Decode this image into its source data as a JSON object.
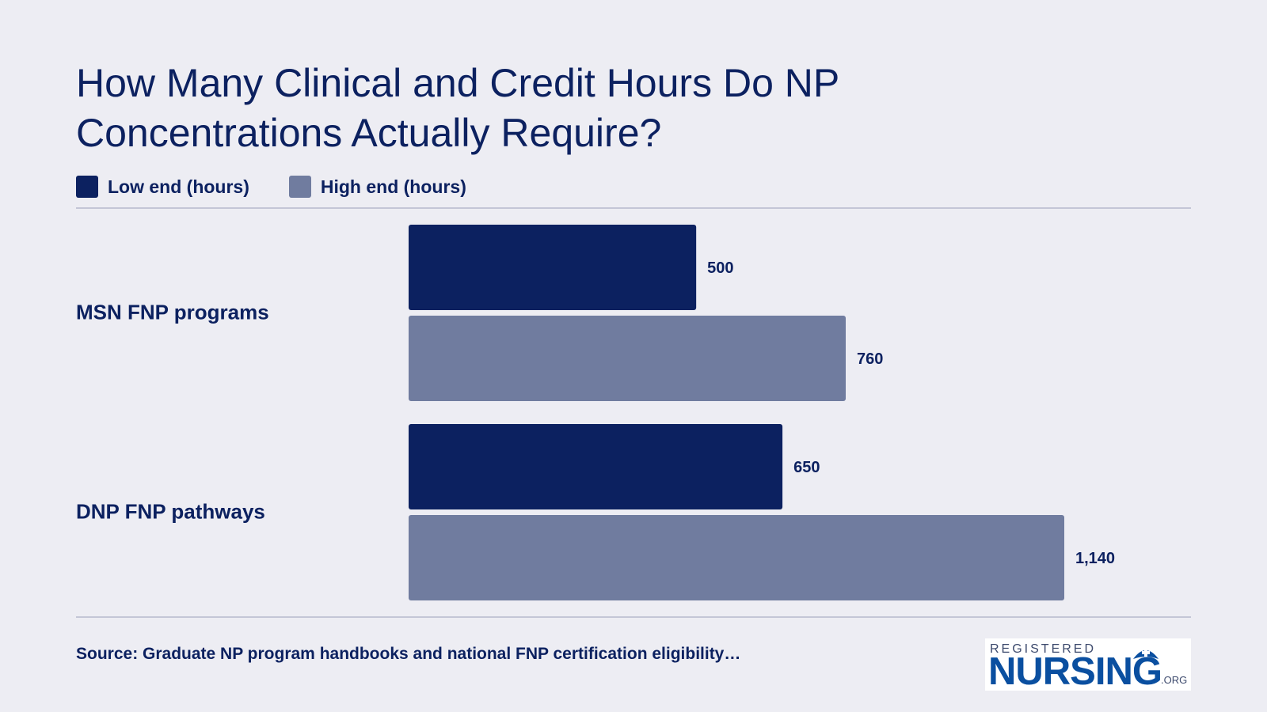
{
  "title": "How Many Clinical and Credit Hours Do NP Concentrations Actually Require?",
  "legend": [
    {
      "label": "Low end (hours)",
      "color": "#0c2160"
    },
    {
      "label": "High end (hours)",
      "color": "#707c9f"
    }
  ],
  "source": "Source: Graduate NP program handbooks and national FNP certification eligibility…",
  "logo": {
    "top": "REGISTERED",
    "main": "NURSING",
    "suffix": ".ORG",
    "icon": "nurse-cap-icon"
  },
  "chart_data": {
    "type": "bar",
    "orientation": "horizontal",
    "title": "How Many Clinical and Credit Hours Do NP Concentrations Actually Require?",
    "categories": [
      "MSN FNP programs",
      "DNP FNP pathways"
    ],
    "series": [
      {
        "name": "Low end (hours)",
        "values": [
          500,
          650
        ],
        "labels": [
          "500",
          "650"
        ],
        "color": "#0c2160"
      },
      {
        "name": "High end (hours)",
        "values": [
          760,
          1140
        ],
        "labels": [
          "760",
          "1,140"
        ],
        "color": "#707c9f"
      }
    ],
    "xlim": [
      0,
      1140
    ],
    "grid": false,
    "legend_position": "top-left"
  }
}
